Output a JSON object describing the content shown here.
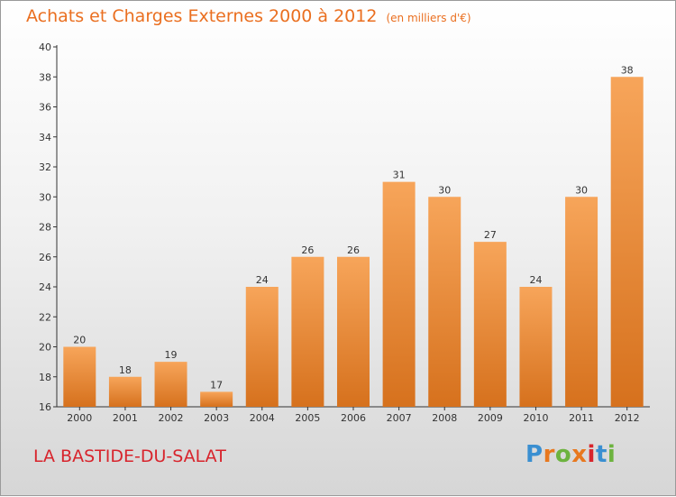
{
  "chart_data": {
    "type": "bar",
    "title": "Achats et Charges Externes 2000 à 2012",
    "subtitle": "(en milliers d'€)",
    "categories": [
      "2000",
      "2001",
      "2002",
      "2003",
      "2004",
      "2005",
      "2006",
      "2007",
      "2008",
      "2009",
      "2010",
      "2011",
      "2012"
    ],
    "values": [
      20,
      18,
      19,
      17,
      24,
      26,
      26,
      31,
      30,
      27,
      24,
      30,
      38
    ],
    "ylim": [
      16,
      40
    ],
    "yticks": [
      16,
      18,
      20,
      22,
      24,
      26,
      28,
      30,
      32,
      34,
      36,
      38,
      40
    ],
    "xlabel": "",
    "ylabel": "",
    "grid": false,
    "data_labels": true,
    "colors": {
      "bar_light": "#f7a55a",
      "bar_dark": "#d6711d",
      "title": "#ea6f20"
    }
  },
  "footer": {
    "commune": "LA BASTIDE-DU-SALAT",
    "logo": "Proxiti",
    "logo_colors": [
      "#3a8fd1",
      "#e8781e",
      "#6db33f",
      "#e8781e",
      "#d8242c",
      "#3a8fd1",
      "#6db33f"
    ]
  }
}
